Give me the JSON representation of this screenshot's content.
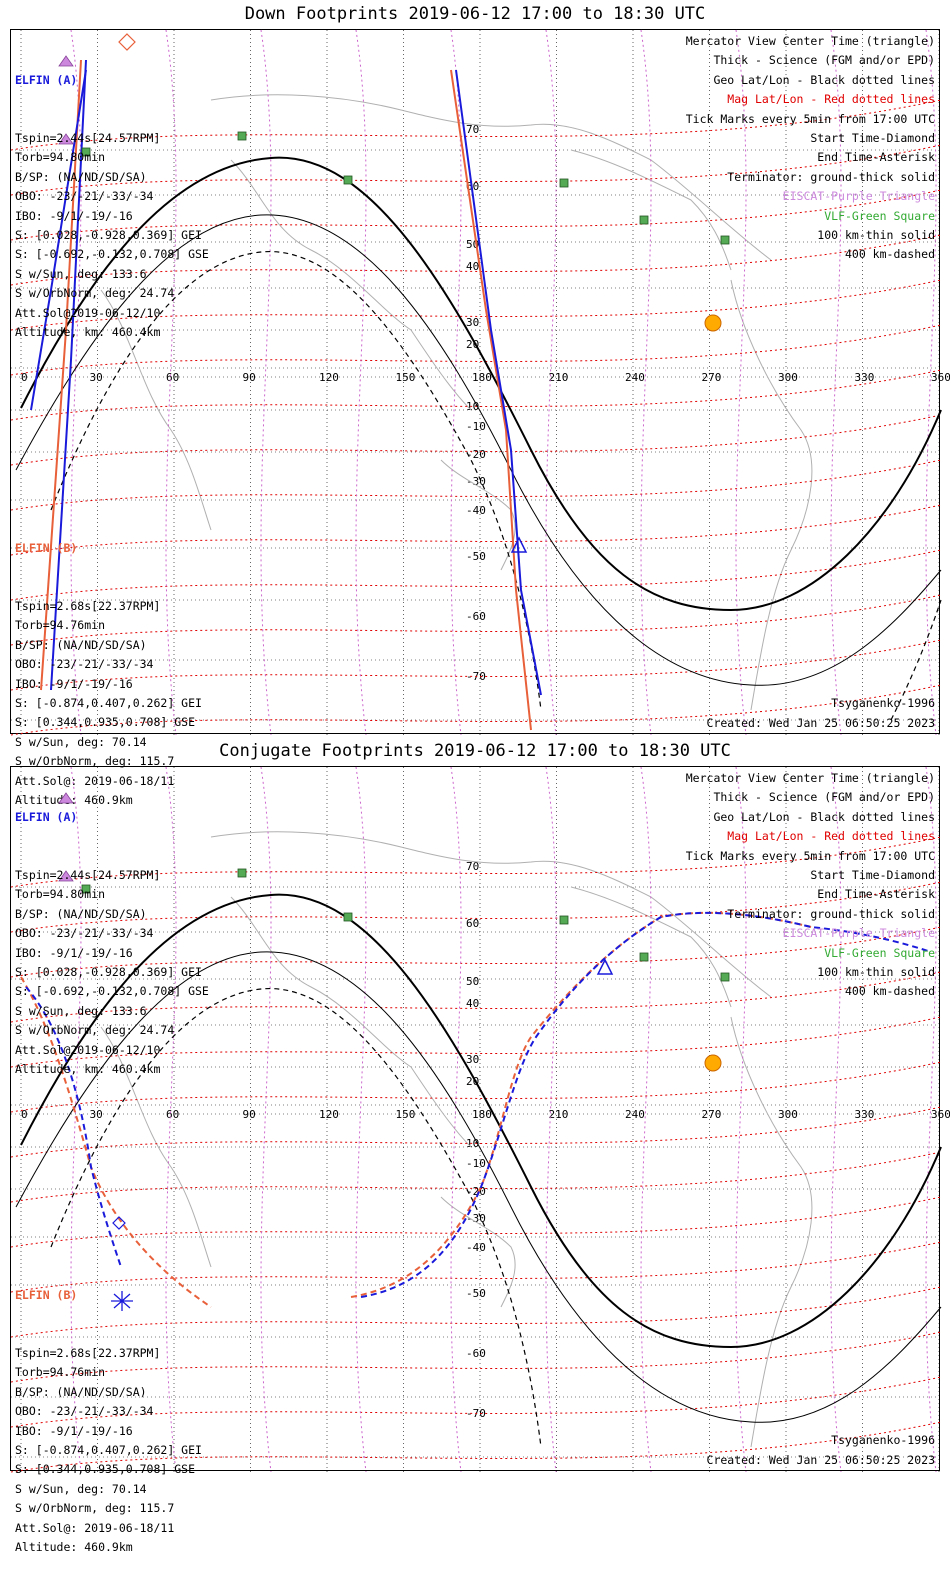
{
  "panels": [
    {
      "title": "Down Footprints 2019-06-12 17:00 to 18:30 UTC",
      "sat_a": {
        "header": "ELFIN (A)",
        "lines": [
          "Tspin=2.44s[24.57RPM]",
          "Torb=94.80min",
          "B/SP: (NA/ND/SD/SA)",
          "OBO: -23/-21/-33/-34",
          "IBO: -9/1/-19/-16",
          "S: [0.028,-0.928,0.369] GEI",
          "S: [-0.692,-0.132,0.708] GSE",
          "S w/Sun, deg: 133.6",
          "S w/OrbNorm, deg: 24.74",
          "Att.Sol@2019-06-12/10",
          "Altitude, km: 460.4km"
        ]
      },
      "sat_b": {
        "header": "ELFIN (B)",
        "lines": [
          "Tspin=2.68s[22.37RPM]",
          "Torb=94.76min",
          "B/SP: (NA/ND/SD/SA)",
          "OBO: -23/-21/-33/-34",
          "IBO: -9/1/-19/-16",
          "S: [-0.874,0.407,0.262] GEI",
          "S: [0.344,0.935,0.708] GSE",
          "S w/Sun, deg: 70.14",
          "S w/OrbNorm, deg: 115.7",
          "Att.Sol@: 2019-06-18/11",
          "Altitude: 460.9km"
        ]
      },
      "legend": [
        "Mercator View Center Time (triangle)",
        "Thick - Science (FGM and/or EPD)",
        "Geo Lat/Lon - Black dotted lines",
        "Mag Lat/Lon - Red dotted lines",
        "Tick Marks every 5min from 17:00 UTC",
        "Start Time-Diamond",
        "End Time-Asterisk",
        "Terminator: ground-thick solid",
        "EISCAT-Purple Triangle",
        "VLF-Green Square",
        "100 km-thin solid",
        "400 km-dashed"
      ],
      "model": "Tsyganenko-1996",
      "created": "Created: Wed Jan 25 06:50:25 2023"
    },
    {
      "title": "Conjugate Footprints 2019-06-12 17:00 to 18:30 UTC",
      "sat_a": {
        "header": "ELFIN (A)",
        "lines": [
          "Tspin=2.44s[24.57RPM]",
          "Torb=94.80min",
          "B/SP: (NA/ND/SD/SA)",
          "OBO: -23/-21/-33/-34",
          "IBO: -9/1/-19/-16",
          "S: [0.028,-0.928,0.369] GEI",
          "S: [-0.692,-0.132,0.708] GSE",
          "S w/Sun, deg: 133.6",
          "S w/OrbNorm, deg: 24.74",
          "Att.Sol@2019-06-12/10",
          "Altitude, km: 460.4km"
        ]
      },
      "sat_b": {
        "header": "ELFIN (B)",
        "lines": [
          "Tspin=2.68s[22.37RPM]",
          "Torb=94.76min",
          "B/SP: (NA/ND/SD/SA)",
          "OBO: -23/-21/-33/-34",
          "IBO: -9/1/-19/-16",
          "S: [-0.874,0.407,0.262] GEI",
          "S: [0.344,0.935,0.708] GSE",
          "S w/Sun, deg: 70.14",
          "S w/OrbNorm, deg: 115.7",
          "Att.Sol@: 2019-06-18/11",
          "Altitude: 460.9km"
        ]
      },
      "legend": [
        "Mercator View Center Time (triangle)",
        "Thick - Science (FGM and/or EPD)",
        "Geo Lat/Lon - Black dotted lines",
        "Mag Lat/Lon - Red dotted lines",
        "Tick Marks every 5min from 17:00 UTC",
        "Start Time-Diamond",
        "End Time-Asterisk",
        "Terminator: ground-thick solid",
        "EISCAT-Purple Triangle",
        "VLF-Green Square",
        "100 km-thin solid",
        "400 km-dashed"
      ],
      "model": "Tsyganenko-1996",
      "created": "Created: Wed Jan 25 06:50:25 2023"
    }
  ],
  "lon_ticks": [
    "0",
    "30",
    "60",
    "90",
    "120",
    "150",
    "180",
    "210",
    "240",
    "270",
    "300",
    "330",
    "360"
  ],
  "lat_ticks": [
    "70",
    "60",
    "50",
    "40",
    "30",
    "20",
    "10",
    "-10",
    "-20",
    "-30",
    "-40",
    "-50",
    "-60",
    "-70"
  ],
  "colors": {
    "sat_a": "#1a1adb",
    "sat_b": "#e8603a",
    "mag_grid": "#e00000",
    "terminator": "#000000",
    "eiscat": "#cc88dd",
    "vlf": "#55aa55",
    "sun": "#ffaa00"
  }
}
